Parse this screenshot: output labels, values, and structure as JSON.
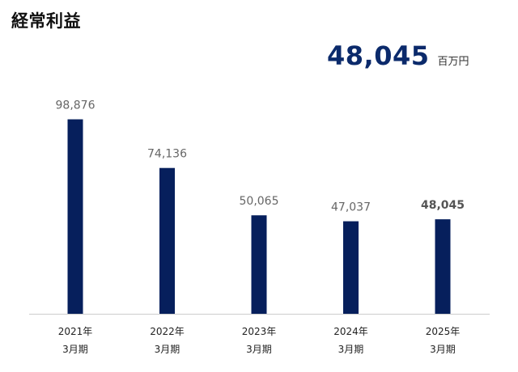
{
  "title": "経常利益",
  "headline": {
    "value": "48,045",
    "unit": "百万円"
  },
  "colors": {
    "bar": "#061f5c",
    "axis": "#cccccc",
    "headline": "#0b2a6b"
  },
  "chart_data": {
    "type": "bar",
    "title": "経常利益",
    "unit": "百万円",
    "categories": [
      [
        "2021年",
        "3月期"
      ],
      [
        "2022年",
        "3月期"
      ],
      [
        "2023年",
        "3月期"
      ],
      [
        "2024年",
        "3月期"
      ],
      [
        "2025年",
        "3月期"
      ]
    ],
    "values": [
      98876,
      74136,
      50065,
      47037,
      48045
    ],
    "value_labels": [
      "98,876",
      "74,136",
      "50,065",
      "47,037",
      "48,045"
    ],
    "highlight_index": 4,
    "ylim": [
      0,
      100000
    ],
    "grid": false,
    "legend": "none"
  }
}
